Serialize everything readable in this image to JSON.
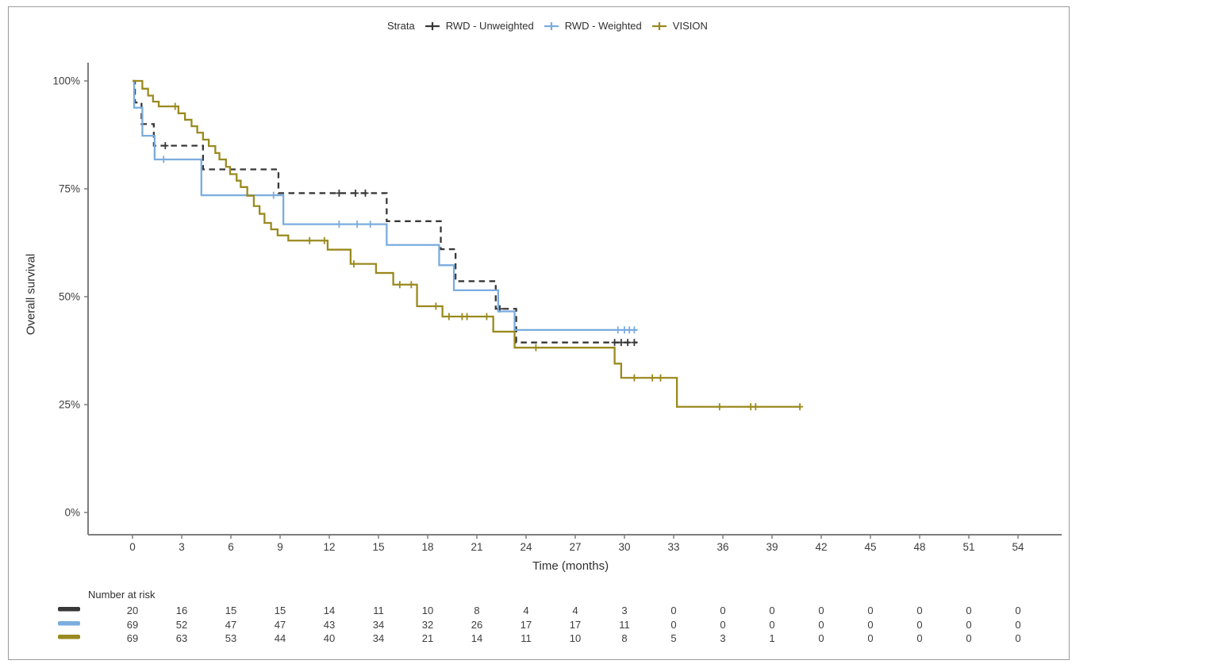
{
  "figure": {
    "y_axis_title": "Overall survival",
    "x_axis_title": "Time (months)",
    "risk_table_title": "Number at risk",
    "legend_title": "Strata"
  },
  "chart_data": {
    "type": "line",
    "subtype": "kaplan-meier-step",
    "title": "",
    "xlabel": "Time (months)",
    "ylabel": "Overall survival",
    "xlim": [
      0,
      54
    ],
    "ylim": [
      0,
      100
    ],
    "grid": false,
    "legend_position": "top",
    "legend_title": "Strata",
    "x_ticks": [
      0,
      3,
      6,
      9,
      12,
      15,
      18,
      21,
      24,
      27,
      30,
      33,
      36,
      39,
      42,
      45,
      48,
      51,
      54
    ],
    "y_ticks": [
      {
        "value": 0,
        "label": "0%"
      },
      {
        "value": 25,
        "label": "25%"
      },
      {
        "value": 50,
        "label": "50%"
      },
      {
        "value": 75,
        "label": "75%"
      },
      {
        "value": 100,
        "label": "100%"
      }
    ],
    "series": [
      {
        "name": "RWD - Unweighted",
        "color": "#383838",
        "line_style": "dashed",
        "steps": [
          [
            0,
            100
          ],
          [
            0.15,
            95
          ],
          [
            0.55,
            90
          ],
          [
            1.3,
            85
          ],
          [
            4.3,
            79.5
          ],
          [
            8.9,
            74
          ],
          [
            15.5,
            67.5
          ],
          [
            18.8,
            61
          ],
          [
            19.7,
            53.6
          ],
          [
            22.15,
            47.2
          ],
          [
            23.4,
            39.4
          ],
          [
            30.8,
            39.4
          ]
        ],
        "censor_marks": [
          [
            2.0,
            85
          ],
          [
            12.6,
            74
          ],
          [
            13.6,
            74
          ],
          [
            14.2,
            74
          ],
          [
            22.4,
            47.2
          ],
          [
            29.4,
            39.4
          ],
          [
            29.8,
            39.4
          ],
          [
            30.2,
            39.4
          ],
          [
            30.6,
            39.4
          ]
        ]
      },
      {
        "name": "RWD - Weighted",
        "color": "#7BACDE",
        "line_style": "solid",
        "steps": [
          [
            0,
            100
          ],
          [
            0.1,
            93.8
          ],
          [
            0.6,
            87.3
          ],
          [
            1.35,
            81.8
          ],
          [
            4.2,
            73.5
          ],
          [
            9.2,
            66.8
          ],
          [
            15.5,
            62
          ],
          [
            18.7,
            57.3
          ],
          [
            19.6,
            51.5
          ],
          [
            22.3,
            46.6
          ],
          [
            23.3,
            42.3
          ],
          [
            30.8,
            42.3
          ]
        ],
        "censor_marks": [
          [
            1.9,
            81.8
          ],
          [
            8.6,
            73.5
          ],
          [
            12.6,
            66.8
          ],
          [
            13.7,
            66.8
          ],
          [
            14.5,
            66.8
          ],
          [
            29.6,
            42.3
          ],
          [
            30.0,
            42.3
          ],
          [
            30.3,
            42.3
          ],
          [
            30.6,
            42.3
          ]
        ]
      },
      {
        "name": "VISION",
        "color": "#9A8A1F",
        "line_style": "solid",
        "steps": [
          [
            0,
            100
          ],
          [
            0.6,
            98.2
          ],
          [
            0.95,
            96.6
          ],
          [
            1.25,
            95.2
          ],
          [
            1.6,
            94.1
          ],
          [
            2.8,
            92.5
          ],
          [
            3.2,
            91
          ],
          [
            3.6,
            89.5
          ],
          [
            3.95,
            88
          ],
          [
            4.3,
            86.4
          ],
          [
            4.65,
            84.9
          ],
          [
            5.05,
            83.3
          ],
          [
            5.3,
            81.8
          ],
          [
            5.7,
            80.1
          ],
          [
            5.95,
            78.4
          ],
          [
            6.35,
            76.9
          ],
          [
            6.6,
            75.4
          ],
          [
            7.0,
            73.4
          ],
          [
            7.4,
            71
          ],
          [
            7.75,
            69.2
          ],
          [
            8.05,
            67.1
          ],
          [
            8.45,
            65.6
          ],
          [
            8.85,
            64.2
          ],
          [
            9.5,
            63
          ],
          [
            11.9,
            60.9
          ],
          [
            13.3,
            57.6
          ],
          [
            14.85,
            55.5
          ],
          [
            15.9,
            52.8
          ],
          [
            17.35,
            47.8
          ],
          [
            18.9,
            45.4
          ],
          [
            22.0,
            41.9
          ],
          [
            23.3,
            38.2
          ],
          [
            29.4,
            34.5
          ],
          [
            29.8,
            31.2
          ],
          [
            33.2,
            24.5
          ],
          [
            40.7,
            24.5
          ]
        ],
        "censor_marks": [
          [
            2.6,
            94.1
          ],
          [
            10.8,
            63
          ],
          [
            11.7,
            63
          ],
          [
            13.5,
            57.6
          ],
          [
            16.3,
            52.8
          ],
          [
            17.0,
            52.8
          ],
          [
            18.5,
            47.8
          ],
          [
            19.3,
            45.4
          ],
          [
            20.1,
            45.4
          ],
          [
            20.4,
            45.4
          ],
          [
            21.6,
            45.4
          ],
          [
            24.6,
            38.2
          ],
          [
            30.6,
            31.2
          ],
          [
            31.7,
            31.2
          ],
          [
            32.2,
            31.2
          ],
          [
            35.8,
            24.5
          ],
          [
            37.7,
            24.5
          ],
          [
            38.0,
            24.5
          ],
          [
            40.7,
            24.5
          ]
        ]
      }
    ],
    "risk_table": {
      "title": "Number at risk",
      "times": [
        0,
        3,
        6,
        9,
        12,
        15,
        18,
        21,
        24,
        27,
        30,
        33,
        36,
        39,
        42,
        45,
        48,
        51,
        54
      ],
      "rows": [
        {
          "name": "RWD - Unweighted",
          "color": "#383838",
          "values": [
            20,
            16,
            15,
            15,
            14,
            11,
            10,
            8,
            4,
            4,
            3,
            0,
            0,
            0,
            0,
            0,
            0,
            0,
            0
          ]
        },
        {
          "name": "RWD - Weighted",
          "color": "#7BACDE",
          "values": [
            69,
            52,
            47,
            47,
            43,
            34,
            32,
            26,
            17,
            17,
            11,
            0,
            0,
            0,
            0,
            0,
            0,
            0,
            0
          ]
        },
        {
          "name": "VISION",
          "color": "#9A8A1F",
          "values": [
            69,
            63,
            53,
            44,
            40,
            34,
            21,
            14,
            11,
            10,
            8,
            5,
            3,
            1,
            0,
            0,
            0,
            0,
            0
          ]
        }
      ]
    }
  }
}
